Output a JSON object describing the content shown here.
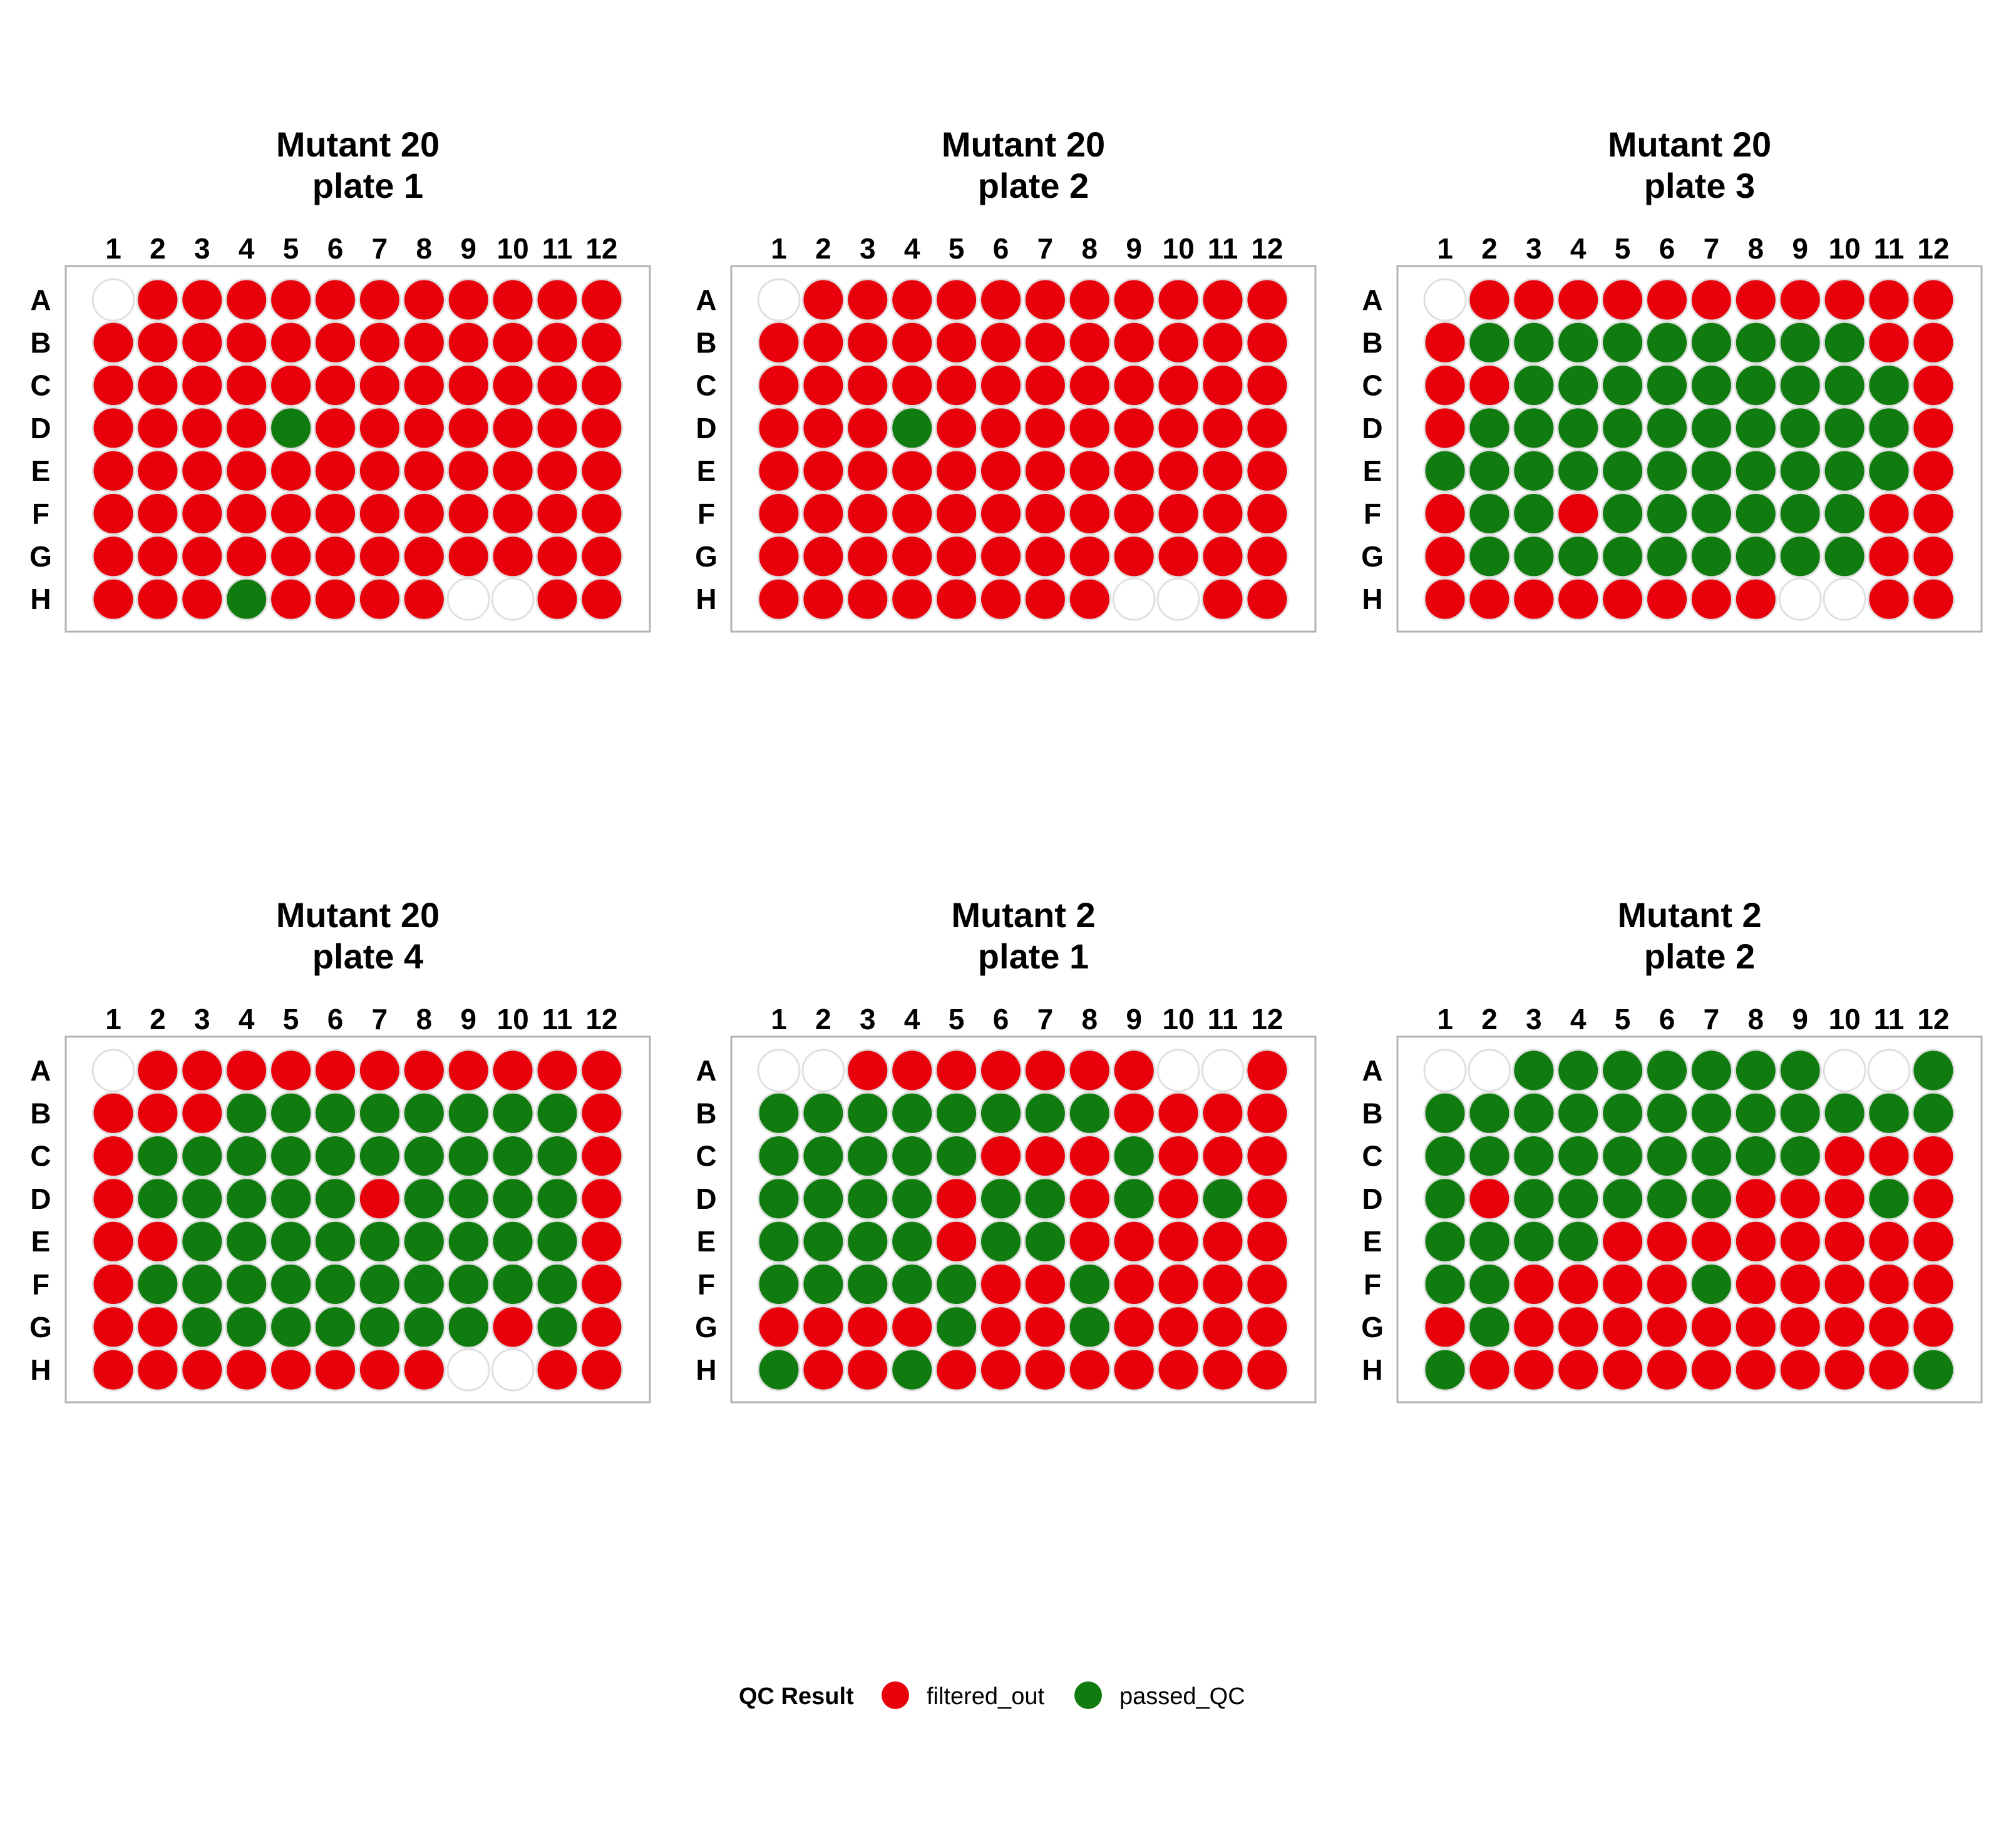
{
  "colors": {
    "filtered_out": "#e8000b",
    "passed_QC": "#107c10",
    "empty": "#ffffff"
  },
  "legend": {
    "title": "QC Result",
    "items": [
      {
        "key": "F",
        "label": "filtered_out",
        "color": "#e8000b"
      },
      {
        "key": "P",
        "label": "passed_QC",
        "color": "#107c10"
      }
    ]
  },
  "chart_data": [
    {
      "type": "heatmap",
      "title": "Mutant 20\nplate 1",
      "columns": [
        "1",
        "2",
        "3",
        "4",
        "5",
        "6",
        "7",
        "8",
        "9",
        "10",
        "11",
        "12"
      ],
      "rows": [
        "A",
        "B",
        "C",
        "D",
        "E",
        "F",
        "G",
        "H"
      ],
      "wells": [
        ".FFFFFFFFFFF",
        "FFFFFFFFFFFF",
        "FFFFFFFFFFFF",
        "FFFFPFFFFFFF",
        "FFFFFFFFFFFF",
        "FFFFFFFFFFFF",
        "FFFFFFFFFFFF",
        "FFFPFFFF..FF"
      ]
    },
    {
      "type": "heatmap",
      "title": "Mutant 20\nplate 2",
      "columns": [
        "1",
        "2",
        "3",
        "4",
        "5",
        "6",
        "7",
        "8",
        "9",
        "10",
        "11",
        "12"
      ],
      "rows": [
        "A",
        "B",
        "C",
        "D",
        "E",
        "F",
        "G",
        "H"
      ],
      "wells": [
        ".FFFFFFFFFFF",
        "FFFFFFFFFFFF",
        "FFFFFFFFFFFF",
        "FFFPFFFFFFFF",
        "FFFFFFFFFFFF",
        "FFFFFFFFFFFF",
        "FFFFFFFFFFFF",
        "FFFFFFFF..FF"
      ]
    },
    {
      "type": "heatmap",
      "title": "Mutant 20\nplate 3",
      "columns": [
        "1",
        "2",
        "3",
        "4",
        "5",
        "6",
        "7",
        "8",
        "9",
        "10",
        "11",
        "12"
      ],
      "rows": [
        "A",
        "B",
        "C",
        "D",
        "E",
        "F",
        "G",
        "H"
      ],
      "wells": [
        ".FFFFFFFFFFF",
        "FPPPPPPPPPFF",
        "FFPPPPPPPPPF",
        "FPPPPPPPPPPF",
        "PPPPPPPPPPPF",
        "FPPFPPPPPPFF",
        "FPPPPPPPPPFF",
        "FFFFFFFF..FF"
      ]
    },
    {
      "type": "heatmap",
      "title": "Mutant 20\nplate 4",
      "columns": [
        "1",
        "2",
        "3",
        "4",
        "5",
        "6",
        "7",
        "8",
        "9",
        "10",
        "11",
        "12"
      ],
      "rows": [
        "A",
        "B",
        "C",
        "D",
        "E",
        "F",
        "G",
        "H"
      ],
      "wells": [
        ".FFFFFFFFFFF",
        "FFFPPPPPPPPF",
        "FPPPPPPPPPPF",
        "FPPPPPFPPPPF",
        "FFPPPPPPPPPF",
        "FPPPPPPPPPPF",
        "FFPPPPPPPFPF",
        "FFFFFFFF..FF"
      ]
    },
    {
      "type": "heatmap",
      "title": "Mutant 2\nplate 1",
      "columns": [
        "1",
        "2",
        "3",
        "4",
        "5",
        "6",
        "7",
        "8",
        "9",
        "10",
        "11",
        "12"
      ],
      "rows": [
        "A",
        "B",
        "C",
        "D",
        "E",
        "F",
        "G",
        "H"
      ],
      "wells": [
        "..FFFFFF F..F",
        "PPPPPPPPFFFF",
        "PPPPPFFFPFFF",
        "PPPPFPPFPFPF",
        "PPPPFPPFFFFF",
        "PPPPPFFPFFFF",
        "FFFFPFFPFFFF",
        "PFFPFFFFFFFF"
      ]
    },
    {
      "type": "heatmap",
      "title": "Mutant 2\nplate 2",
      "columns": [
        "1",
        "2",
        "3",
        "4",
        "5",
        "6",
        "7",
        "8",
        "9",
        "10",
        "11",
        "12"
      ],
      "rows": [
        "A",
        "B",
        "C",
        "D",
        "E",
        "F",
        "G",
        "H"
      ],
      "wells": [
        "..PPPPPPP..P",
        "PPPPPPPPPPPP",
        "PPPPPPPPPFFF",
        "PFPPPPPFFFPF",
        "PPPPFFFFFFFF",
        "PPFFFFPFFFFF",
        "FPFFFFFFFFFF",
        "PFFFFFFFFFFP"
      ]
    }
  ]
}
